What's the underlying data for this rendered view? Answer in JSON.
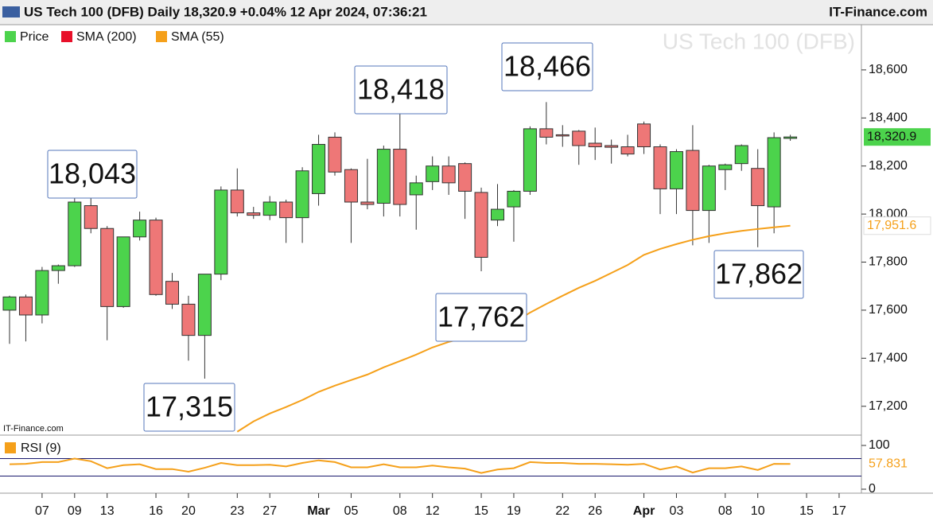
{
  "header": {
    "title": "US Tech 100 (DFB) Daily 18,320.9 +0.04% 12 Apr 2024, 07:36:21",
    "brand": "IT-Finance.com"
  },
  "chart_data": [
    {
      "type": "candlestick",
      "watermark": "US Tech 100 (DFB)",
      "source": "IT-Finance.com",
      "up_color": "#4cd34c",
      "down_color": "#ee7777",
      "open": [
        17600,
        17655,
        17580,
        17765,
        17785,
        18035,
        17940,
        17615,
        17905,
        17975,
        17720,
        17625,
        17495,
        17750,
        18100,
        18005,
        17995,
        18050,
        17985,
        18085,
        18320,
        18185,
        18050,
        18045,
        18270,
        18080,
        18135,
        18200,
        18210,
        18090,
        17975,
        18030,
        18095,
        18355,
        18330,
        18345,
        18295,
        18285,
        18280,
        18375,
        18280,
        18105,
        18265,
        18015,
        18185,
        18210,
        18190,
        18030,
        18315
      ],
      "high": [
        17660,
        17665,
        17780,
        17790,
        18080,
        18100,
        17950,
        17905,
        18010,
        17985,
        17755,
        17660,
        17750,
        18115,
        18190,
        18030,
        18075,
        18060,
        18195,
        18330,
        18340,
        18190,
        18230,
        18285,
        18418,
        18160,
        18240,
        18240,
        18215,
        18110,
        18125,
        18100,
        18365,
        18466,
        18370,
        18350,
        18360,
        18310,
        18330,
        18385,
        18290,
        18270,
        18370,
        18205,
        18210,
        18290,
        18270,
        18340,
        18330
      ],
      "low": [
        17460,
        17470,
        17545,
        17710,
        17780,
        17920,
        17475,
        17610,
        17890,
        17660,
        17605,
        17390,
        17315,
        17725,
        17990,
        17980,
        17975,
        17880,
        17880,
        18035,
        18160,
        17880,
        18020,
        17990,
        17990,
        17935,
        18100,
        18080,
        17980,
        17762,
        17950,
        17885,
        18080,
        18290,
        18280,
        18205,
        18225,
        18210,
        18240,
        18250,
        18000,
        18000,
        17870,
        17880,
        18100,
        18180,
        17862,
        17920,
        18305
      ],
      "close": [
        17655,
        17580,
        17765,
        17785,
        18050,
        17940,
        17615,
        17905,
        17975,
        17665,
        17625,
        17495,
        17750,
        18100,
        18005,
        17995,
        18050,
        17985,
        18180,
        18290,
        18175,
        18050,
        18040,
        18270,
        18040,
        18130,
        18200,
        18130,
        18095,
        17820,
        18020,
        18095,
        18355,
        18320,
        18325,
        18285,
        18280,
        18278,
        18250,
        18280,
        18105,
        18260,
        18015,
        18200,
        18205,
        18285,
        18035,
        18318,
        18320.9
      ],
      "close_label": "18,320.9",
      "series": [
        {
          "name": "Price",
          "color": "#4cd34c"
        },
        {
          "name": "SMA (200)",
          "color": "#e8102a"
        },
        {
          "name": "SMA (55)",
          "color": "#f5a01a",
          "value_label": "17,951.6",
          "values": [
            null,
            null,
            null,
            null,
            null,
            null,
            null,
            null,
            null,
            null,
            null,
            null,
            null,
            null,
            17094,
            17137,
            17170,
            17197,
            17226,
            17260,
            17286,
            17309,
            17332,
            17362,
            17388,
            17415,
            17445,
            17468,
            17484,
            17501,
            17521,
            17547,
            17590,
            17626,
            17660,
            17693,
            17722,
            17755,
            17788,
            17830,
            17855,
            17875,
            17893,
            17908,
            17920,
            17930,
            17938,
            17945,
            17951.6
          ]
        }
      ],
      "annotations": [
        {
          "label": "18,043",
          "value": 18043
        },
        {
          "label": "17,315",
          "value": 17315
        },
        {
          "label": "18,418",
          "value": 18418
        },
        {
          "label": "17,762",
          "value": 17762
        },
        {
          "label": "18,466",
          "value": 18466
        },
        {
          "label": "17,862",
          "value": 17862
        }
      ],
      "ylim": [
        17080,
        18785
      ],
      "yticks": [
        {
          "value": 17200,
          "label": "17,200"
        },
        {
          "value": 17400,
          "label": "17,400"
        },
        {
          "value": 17600,
          "label": "17,600"
        },
        {
          "value": 17800,
          "label": "17,800"
        },
        {
          "value": 18000,
          "label": "18,000"
        },
        {
          "value": 18200,
          "label": "18,200"
        },
        {
          "value": 18400,
          "label": "18,400"
        },
        {
          "value": 18600,
          "label": "18,600"
        }
      ],
      "xticks": [
        {
          "value": 2,
          "label": "07"
        },
        {
          "value": 4,
          "label": "09"
        },
        {
          "value": 6,
          "label": "13"
        },
        {
          "value": 9,
          "label": "16"
        },
        {
          "value": 11,
          "label": "20"
        },
        {
          "value": 14,
          "label": "23"
        },
        {
          "value": 16,
          "label": "27"
        },
        {
          "value": 19,
          "label": "Mar"
        },
        {
          "value": 21,
          "label": "05"
        },
        {
          "value": 24,
          "label": "08"
        },
        {
          "value": 26,
          "label": "12"
        },
        {
          "value": 29,
          "label": "15"
        },
        {
          "value": 31,
          "label": "19"
        },
        {
          "value": 34,
          "label": "22"
        },
        {
          "value": 36,
          "label": "26"
        },
        {
          "value": 39,
          "label": "Apr"
        },
        {
          "value": 41,
          "label": "03"
        },
        {
          "value": 44,
          "label": "08"
        },
        {
          "value": 46,
          "label": "10"
        },
        {
          "value": 49,
          "label": "15"
        },
        {
          "value": 51,
          "label": "17"
        }
      ]
    },
    {
      "type": "line",
      "series": [
        {
          "name": "RSI (9)",
          "color": "#f5a01a",
          "value_label": "57.831",
          "values": [
            57,
            58,
            62,
            62,
            70,
            64,
            48,
            55,
            57,
            46,
            46,
            40,
            49,
            60,
            55,
            55,
            56,
            52,
            60,
            66,
            62,
            50,
            50,
            57,
            50,
            50,
            54,
            50,
            47,
            37,
            45,
            48,
            62,
            60,
            60,
            58,
            58,
            57,
            56,
            58,
            45,
            52,
            38,
            48,
            48,
            52,
            44,
            58,
            57.831
          ]
        }
      ],
      "ylim": [
        0,
        100
      ],
      "yticks": [
        0,
        100
      ],
      "levels": [
        70,
        30
      ]
    }
  ]
}
